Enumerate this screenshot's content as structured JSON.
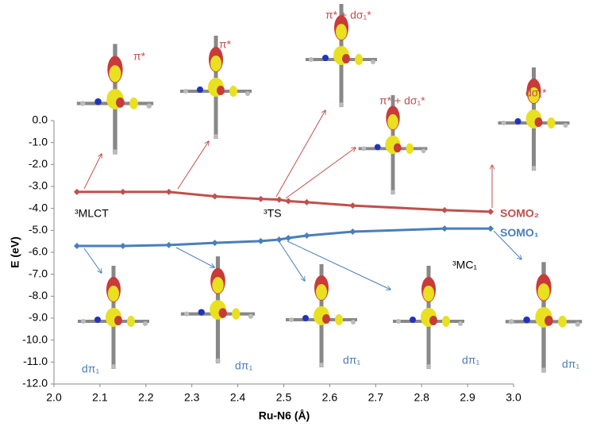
{
  "chart_data": {
    "type": "line",
    "x_label": "Ru-N6 (Å)",
    "y_label": "E (eV)",
    "x": [
      2.05,
      2.15,
      2.25,
      2.35,
      2.45,
      2.49,
      2.51,
      2.55,
      2.65,
      2.85,
      2.95
    ],
    "series": [
      {
        "name": "SOMO₂",
        "color": "#c0504d",
        "values": [
          -3.25,
          -3.25,
          -3.25,
          -3.45,
          -3.57,
          -3.6,
          -3.67,
          -3.72,
          -3.87,
          -4.08,
          -4.15
        ]
      },
      {
        "name": "SOMO₁",
        "color": "#4a7ebb",
        "values": [
          -5.71,
          -5.71,
          -5.67,
          -5.57,
          -5.49,
          -5.42,
          -5.35,
          -5.24,
          -5.06,
          -4.92,
          -4.92
        ]
      }
    ],
    "xlim": [
      2.0,
      3.0
    ],
    "xticks": [
      {
        "value": 2.0,
        "label": "2.0"
      },
      2.1,
      2.2,
      2.3,
      2.4,
      2.5,
      2.6,
      2.7,
      2.8,
      2.9,
      {
        "value": 3.0,
        "label": "3.0"
      }
    ],
    "ylim": [
      -12.0,
      0.0
    ],
    "yticks": [
      {
        "value": 0,
        "label": "0.0"
      },
      {
        "value": -1,
        "label": "-1.0"
      },
      {
        "value": -2,
        "label": "-2.0"
      },
      {
        "value": -3,
        "label": "-3.0"
      },
      {
        "value": -4,
        "label": "-4.0"
      },
      {
        "value": -5,
        "label": "-5.0"
      },
      {
        "value": -6,
        "label": "-6.0"
      },
      {
        "value": -7,
        "label": "-7.0"
      },
      {
        "value": -8,
        "label": "-8.0"
      },
      {
        "value": -9,
        "label": "-9.0"
      },
      {
        "value": -10,
        "label": "-10.0"
      },
      {
        "value": -11,
        "label": "-11.0"
      },
      {
        "value": -12,
        "label": "-12.0"
      }
    ],
    "annotations": [
      "π*",
      "π*",
      "π* + dσ₁*",
      "π* + dσ₁*",
      "dσ₁*",
      "³MLCT",
      "³TS",
      "³MC₁",
      "dπ₁",
      "dπ₁",
      "dπ₁",
      "dπ₁",
      "dπ₁"
    ],
    "grid": false
  }
}
